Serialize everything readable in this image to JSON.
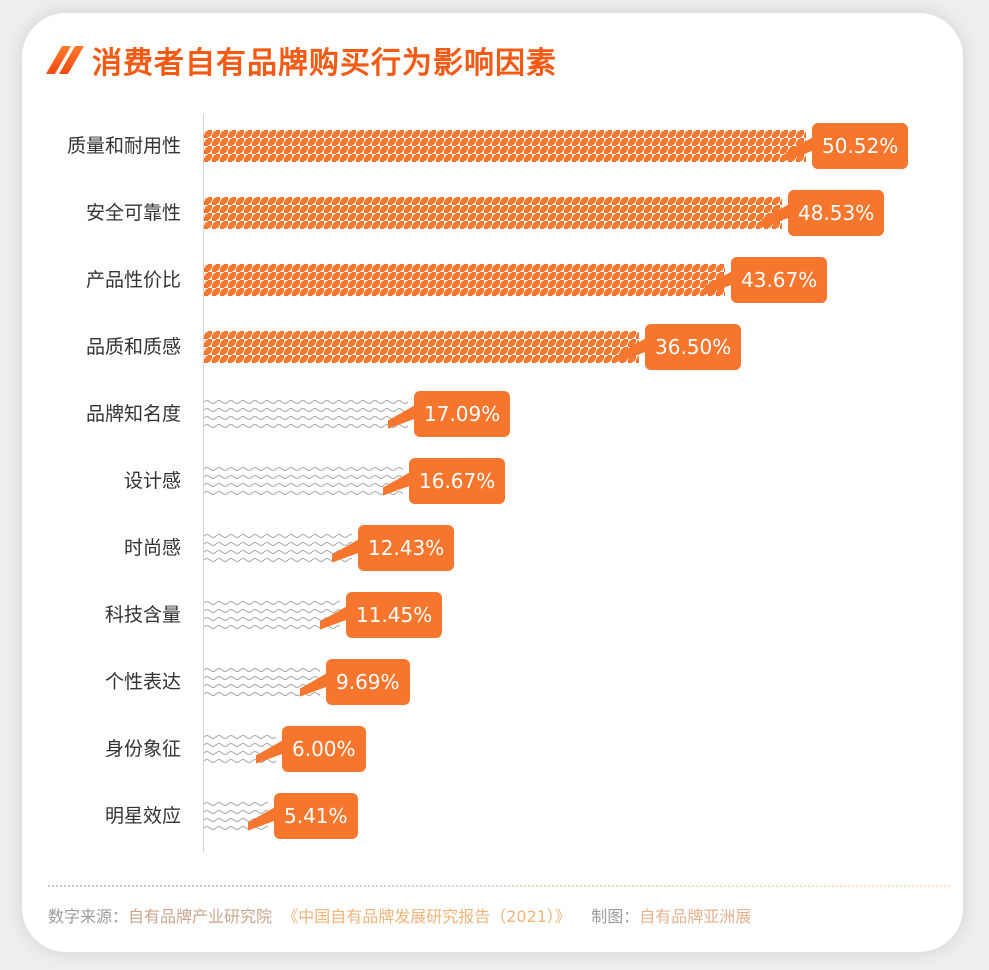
{
  "title": "消费者自有品牌购买行为影响因素",
  "colors": {
    "accent": "#f7762e",
    "title": "#f45a14",
    "highlight_bar": "#f07030",
    "normal_bar": "#a8a8a8"
  },
  "chart_data": {
    "type": "bar",
    "orientation": "horizontal",
    "title": "消费者自有品牌购买行为影响因素",
    "xlabel": "",
    "ylabel": "",
    "categories": [
      "质量和耐用性",
      "安全可靠性",
      "产品性价比",
      "品质和质感",
      "品牌知名度",
      "设计感",
      "时尚感",
      "科技含量",
      "个性表达",
      "身份象征",
      "明星效应"
    ],
    "values": [
      50.52,
      48.53,
      43.67,
      36.5,
      17.09,
      16.67,
      12.43,
      11.45,
      9.69,
      6.0,
      5.41
    ],
    "value_labels": [
      "50.52%",
      "48.53%",
      "43.67%",
      "36.50%",
      "17.09%",
      "16.67%",
      "12.43%",
      "11.45%",
      "9.69%",
      "6.00%",
      "5.41%"
    ],
    "highlighted": [
      true,
      true,
      true,
      true,
      false,
      false,
      false,
      false,
      false,
      false,
      false
    ],
    "unit": "%",
    "grid": false,
    "legend": null
  },
  "footer": {
    "source_key": "数字来源：",
    "source_org": "自有品牌产业研究院",
    "source_report": "《中国自有品牌发展研究报告（2021）》",
    "chart_key": "制图：",
    "chart_by": "自有品牌亚洲展"
  }
}
